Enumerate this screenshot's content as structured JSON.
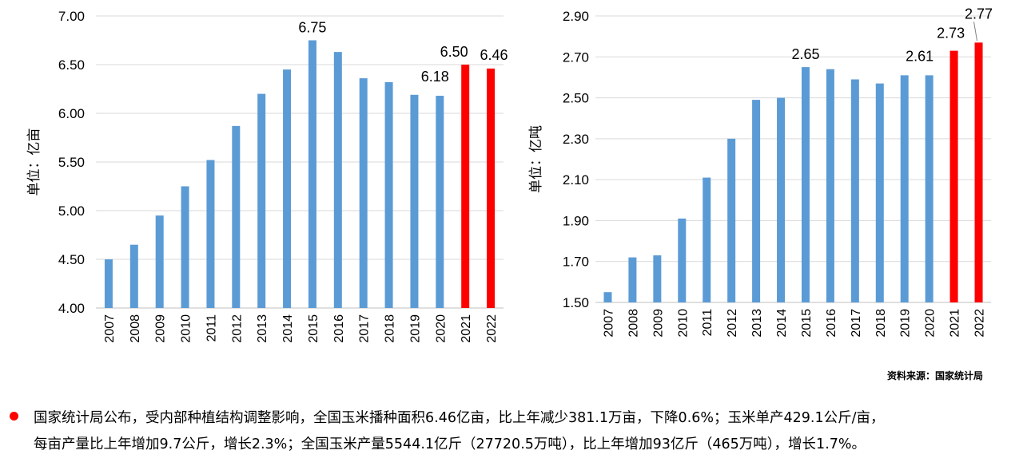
{
  "chart_data": [
    {
      "type": "bar",
      "ylabel": "单位：亿亩",
      "ylim": [
        4.0,
        7.0
      ],
      "yticks": [
        "4.00",
        "4.50",
        "5.00",
        "5.50",
        "6.00",
        "6.50",
        "7.00"
      ],
      "categories": [
        "2007",
        "2008",
        "2009",
        "2010",
        "2011",
        "2012",
        "2013",
        "2014",
        "2015",
        "2016",
        "2017",
        "2018",
        "2019",
        "2020",
        "2021",
        "2022"
      ],
      "values": [
        4.5,
        4.65,
        4.95,
        5.25,
        5.52,
        5.87,
        6.2,
        6.45,
        6.75,
        6.63,
        6.36,
        6.32,
        6.19,
        6.18,
        6.5,
        6.46
      ],
      "data_labels": {
        "2015": "6.75",
        "2020": "6.18",
        "2021": "6.50",
        "2022": "6.46"
      },
      "highlight_years": [
        "2021",
        "2022"
      ],
      "grid": true,
      "colors": {
        "bar": "#5B9BD5",
        "highlight": "#FF0000",
        "grid": "#D9D9D9"
      }
    },
    {
      "type": "bar",
      "ylabel": "单位：亿吨",
      "ylim": [
        1.5,
        2.9
      ],
      "yticks": [
        "1.50",
        "1.70",
        "1.90",
        "2.10",
        "2.30",
        "2.50",
        "2.70",
        "2.90"
      ],
      "categories": [
        "2007",
        "2008",
        "2009",
        "2010",
        "2011",
        "2012",
        "2013",
        "2014",
        "2015",
        "2016",
        "2017",
        "2018",
        "2019",
        "2020",
        "2021",
        "2022"
      ],
      "values": [
        1.55,
        1.72,
        1.73,
        1.91,
        2.11,
        2.3,
        2.49,
        2.5,
        2.65,
        2.64,
        2.59,
        2.57,
        2.61,
        2.61,
        2.73,
        2.77
      ],
      "data_labels": {
        "2015": "2.65",
        "2020": "2.61",
        "2021": "2.73",
        "2022": "2.77"
      },
      "highlight_years": [
        "2021",
        "2022"
      ],
      "grid": true,
      "colors": {
        "bar": "#5B9BD5",
        "highlight": "#FF0000",
        "grid": "#D9D9D9"
      }
    }
  ],
  "source": "资料来源：国家统计局",
  "summary": {
    "line1": "国家统计局公布，受内部种植结构调整影响，全国玉米播种面积6.46亿亩，比上年减少381.1万亩，下降0.6%；玉米单产429.1公斤/亩，",
    "line2": "每亩产量比上年增加9.7公斤，增长2.3%；全国玉米产量5544.1亿斤（27720.5万吨），比上年增加93亿斤（465万吨），增长1.7%。"
  }
}
